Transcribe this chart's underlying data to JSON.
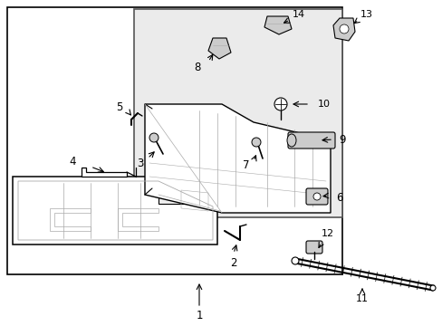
{
  "bg_color": "#ffffff",
  "line_color": "#000000",
  "gray_fill": "#d8d8d8",
  "light_gray": "#aaaaaa",
  "fig_w": 4.89,
  "fig_h": 3.6,
  "dpi": 100
}
